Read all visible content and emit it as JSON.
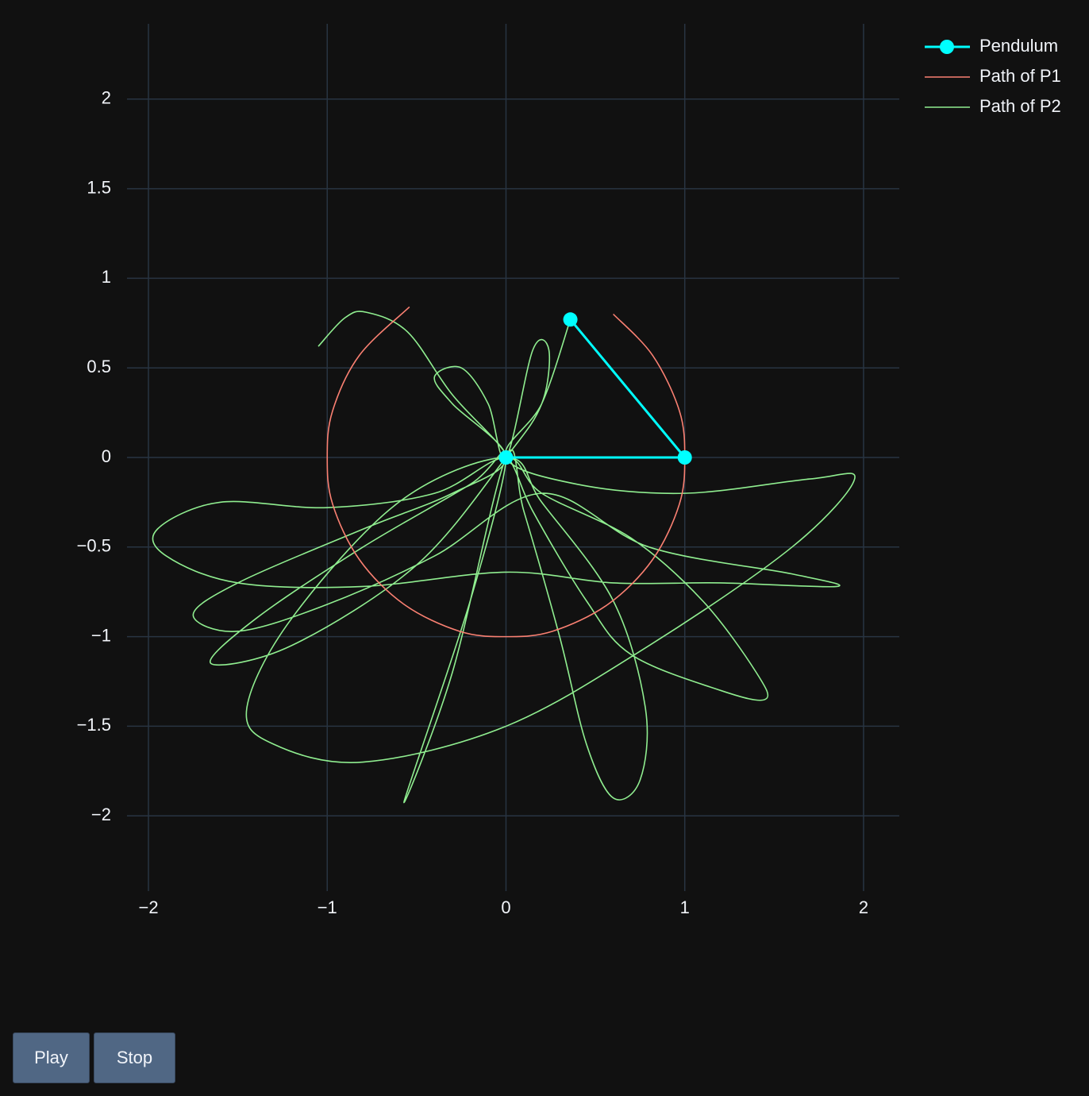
{
  "chart_data": {
    "type": "line",
    "xlim": [
      -2.12,
      2.2
    ],
    "ylim": [
      -2.42,
      2.42
    ],
    "xticks": [
      {
        "value": -2,
        "label": "−2"
      },
      {
        "value": -1,
        "label": "−1"
      },
      0,
      1,
      2
    ],
    "yticks": [
      {
        "value": -2,
        "label": "−2"
      },
      {
        "value": -1.5,
        "label": "−1.5"
      },
      {
        "value": -1,
        "label": "−1"
      },
      {
        "value": -0.5,
        "label": "−0.5"
      },
      0,
      0.5,
      1,
      1.5,
      2
    ],
    "grid": true,
    "legend": "top-right",
    "series": [
      {
        "name": "Pendulum",
        "color": "#00ffff",
        "markers": true,
        "x": [
          0,
          1,
          0.36
        ],
        "y": [
          0,
          0,
          0.77
        ]
      },
      {
        "name": "Path of P1",
        "color": "#fa8072",
        "x": [
          0.6,
          0.82,
          0.97,
          1,
          0.97,
          0.82,
          0.57,
          0.26,
          0,
          -0.26,
          -0.57,
          -0.82,
          -0.97,
          -1,
          -0.97,
          -0.82,
          -0.54
        ],
        "y": [
          0.8,
          0.57,
          0.26,
          0,
          -0.26,
          -0.57,
          -0.82,
          -0.97,
          -1,
          -0.97,
          -0.82,
          -0.57,
          -0.26,
          0,
          0.26,
          0.57,
          0.84
        ]
      },
      {
        "name": "Path of P2",
        "color": "#90ee90",
        "x": [
          -1.05,
          -0.9,
          -0.78,
          -0.55,
          -0.3,
          0,
          0.15,
          0.45,
          0.7,
          1.2,
          1.45,
          1.4,
          1.1,
          0.7,
          0.2,
          0,
          -0.4,
          -1.0,
          -1.6,
          -1.95,
          -1.9,
          -1.5,
          -0.8,
          0,
          0.6,
          1.2,
          1.85,
          1.6,
          0.8,
          0.2,
          -0.4,
          -1.0,
          -1.5,
          -1.75,
          -1.5,
          -0.8,
          -0.3,
          0,
          -0.3,
          -0.4,
          -0.25,
          -0.1,
          0,
          0.15,
          0.24,
          0.2,
          0,
          -0.5,
          -1.2,
          -1.65,
          -1.4,
          -0.8,
          -0.2,
          0,
          -0.2,
          -0.57,
          -0.3,
          0,
          0.1,
          0.3,
          0.45,
          0.6,
          0.75,
          0.78,
          0.6,
          0.2,
          0,
          -0.6,
          -1.2,
          -1.45,
          -1.3,
          -0.8,
          0,
          0.8,
          1.6,
          1.95,
          1.7,
          1.0,
          0.4,
          0,
          0.2,
          0.36
        ],
        "y": [
          0.62,
          0.78,
          0.81,
          0.7,
          0.35,
          0.02,
          -0.3,
          -0.8,
          -1.1,
          -1.3,
          -1.35,
          -1.2,
          -0.8,
          -0.45,
          -0.2,
          0,
          -0.2,
          -0.28,
          -0.25,
          -0.4,
          -0.55,
          -0.7,
          -0.72,
          -0.64,
          -0.7,
          -0.7,
          -0.72,
          -0.65,
          -0.5,
          -0.2,
          -0.55,
          -0.82,
          -0.97,
          -0.88,
          -0.7,
          -0.4,
          -0.2,
          0,
          0.3,
          0.45,
          0.5,
          0.3,
          0,
          0.6,
          0.6,
          0.3,
          0,
          -0.6,
          -1.05,
          -1.15,
          -0.9,
          -0.5,
          -0.15,
          0,
          -0.8,
          -1.92,
          -1.2,
          0,
          -0.3,
          -1.0,
          -1.6,
          -1.9,
          -1.8,
          -1.4,
          -0.8,
          -0.25,
          0,
          -0.25,
          -0.9,
          -1.4,
          -1.6,
          -1.7,
          -1.5,
          -1.05,
          -0.5,
          -0.12,
          -0.12,
          -0.2,
          -0.15,
          0,
          0.3,
          0.77
        ]
      }
    ]
  },
  "buttons": [
    "Play",
    "Stop"
  ]
}
